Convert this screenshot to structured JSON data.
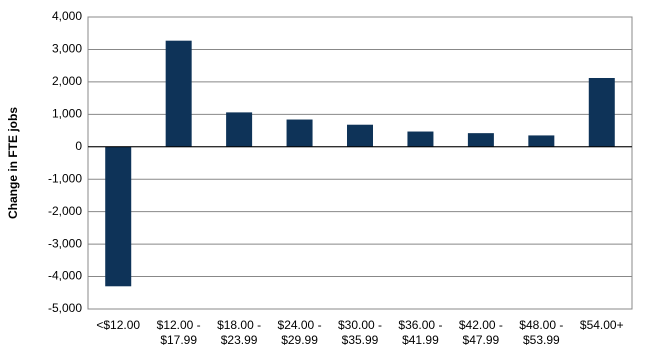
{
  "chart_data": {
    "type": "bar",
    "ylabel": "Change in FTE jobs",
    "categories": [
      "<$12.00",
      "$12.00 -\n$17.99",
      "$18.00 -\n$23.99",
      "$24.00 -\n$29.99",
      "$30.00 -\n$35.99",
      "$36.00 -\n$41.99",
      "$42.00 -\n$47.99",
      "$48.00 -\n$53.99",
      "$54.00+"
    ],
    "values": [
      -4300,
      3270,
      1060,
      840,
      680,
      470,
      420,
      350,
      2120
    ],
    "color": "#0e3358",
    "ylim": [
      -5000,
      4000
    ],
    "yticks": [
      {
        "value": -5000,
        "label": "-5,000"
      },
      {
        "value": -4000,
        "label": "-4,000"
      },
      {
        "value": -3000,
        "label": "-3,000"
      },
      {
        "value": -2000,
        "label": "-2,000"
      },
      {
        "value": -1000,
        "label": "-1,000"
      },
      0,
      {
        "value": 1000,
        "label": "1,000"
      },
      {
        "value": 2000,
        "label": "2,000"
      },
      {
        "value": 3000,
        "label": "3,000"
      },
      {
        "value": 4000,
        "label": "4,000"
      }
    ],
    "grid": true
  }
}
